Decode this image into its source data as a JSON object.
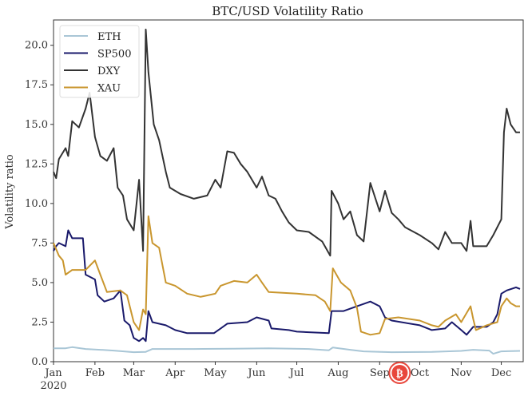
{
  "chart_data": {
    "type": "line",
    "title": "BTC/USD Volatility Ratio",
    "xlabel": "",
    "ylabel": "Volatility ratio",
    "xlim": [
      "2020-01-01",
      "2020-12-15"
    ],
    "ylim": [
      0,
      21.6
    ],
    "grid": false,
    "legend_position": "top-left",
    "y_ticks": [
      "0.0",
      "2.5",
      "5.0",
      "7.5",
      "10.0",
      "12.5",
      "15.0",
      "17.5",
      "20.0"
    ],
    "x_ticks": [
      {
        "date": "2020-01-01",
        "label": "Jan",
        "sub": "2020"
      },
      {
        "date": "2020-02-01",
        "label": "Feb"
      },
      {
        "date": "2020-03-01",
        "label": "Mar"
      },
      {
        "date": "2020-04-01",
        "label": "Apr"
      },
      {
        "date": "2020-05-01",
        "label": "May"
      },
      {
        "date": "2020-06-01",
        "label": "Jun"
      },
      {
        "date": "2020-07-01",
        "label": "Jul"
      },
      {
        "date": "2020-08-01",
        "label": "Aug"
      },
      {
        "date": "2020-09-01",
        "label": "Sep"
      },
      {
        "date": "2020-10-01",
        "label": "Oct"
      },
      {
        "date": "2020-11-01",
        "label": "Nov"
      },
      {
        "date": "2020-12-01",
        "label": "Dec"
      }
    ],
    "series": [
      {
        "name": "ETH",
        "color": "#a9c6d6",
        "points": [
          [
            "2020-01-01",
            0.85
          ],
          [
            "2020-01-10",
            0.85
          ],
          [
            "2020-01-15",
            0.92
          ],
          [
            "2020-01-25",
            0.8
          ],
          [
            "2020-02-05",
            0.75
          ],
          [
            "2020-02-15",
            0.7
          ],
          [
            "2020-03-01",
            0.6
          ],
          [
            "2020-03-10",
            0.62
          ],
          [
            "2020-03-15",
            0.8
          ],
          [
            "2020-04-15",
            0.8
          ],
          [
            "2020-05-15",
            0.82
          ],
          [
            "2020-06-10",
            0.85
          ],
          [
            "2020-07-10",
            0.8
          ],
          [
            "2020-07-25",
            0.72
          ],
          [
            "2020-07-28",
            0.9
          ],
          [
            "2020-08-10",
            0.75
          ],
          [
            "2020-08-20",
            0.65
          ],
          [
            "2020-09-10",
            0.6
          ],
          [
            "2020-10-10",
            0.62
          ],
          [
            "2020-11-01",
            0.68
          ],
          [
            "2020-11-10",
            0.75
          ],
          [
            "2020-11-22",
            0.7
          ],
          [
            "2020-11-25",
            0.5
          ],
          [
            "2020-12-01",
            0.65
          ],
          [
            "2020-12-15",
            0.68
          ]
        ]
      },
      {
        "name": "SP500",
        "color": "#1a1a6b",
        "points": [
          [
            "2020-01-01",
            7.0
          ],
          [
            "2020-01-03",
            7.3
          ],
          [
            "2020-01-05",
            7.5
          ],
          [
            "2020-01-10",
            7.3
          ],
          [
            "2020-01-12",
            8.3
          ],
          [
            "2020-01-15",
            7.8
          ],
          [
            "2020-01-23",
            7.8
          ],
          [
            "2020-01-25",
            5.5
          ],
          [
            "2020-02-01",
            5.2
          ],
          [
            "2020-02-03",
            4.2
          ],
          [
            "2020-02-08",
            3.8
          ],
          [
            "2020-02-15",
            4.0
          ],
          [
            "2020-02-20",
            4.5
          ],
          [
            "2020-02-23",
            2.6
          ],
          [
            "2020-02-27",
            2.3
          ],
          [
            "2020-03-01",
            1.5
          ],
          [
            "2020-03-05",
            1.3
          ],
          [
            "2020-03-08",
            1.5
          ],
          [
            "2020-03-10",
            1.3
          ],
          [
            "2020-03-12",
            3.2
          ],
          [
            "2020-03-15",
            2.5
          ],
          [
            "2020-03-25",
            2.3
          ],
          [
            "2020-04-01",
            2.0
          ],
          [
            "2020-04-10",
            1.8
          ],
          [
            "2020-04-30",
            1.8
          ],
          [
            "2020-05-05",
            2.1
          ],
          [
            "2020-05-10",
            2.4
          ],
          [
            "2020-05-25",
            2.5
          ],
          [
            "2020-06-01",
            2.8
          ],
          [
            "2020-06-10",
            2.6
          ],
          [
            "2020-06-12",
            2.1
          ],
          [
            "2020-06-25",
            2.0
          ],
          [
            "2020-07-01",
            1.9
          ],
          [
            "2020-07-25",
            1.8
          ],
          [
            "2020-07-27",
            3.2
          ],
          [
            "2020-08-05",
            3.2
          ],
          [
            "2020-08-15",
            3.5
          ],
          [
            "2020-08-25",
            3.8
          ],
          [
            "2020-09-01",
            3.5
          ],
          [
            "2020-09-05",
            2.8
          ],
          [
            "2020-09-10",
            2.6
          ],
          [
            "2020-10-01",
            2.3
          ],
          [
            "2020-10-10",
            2.0
          ],
          [
            "2020-10-20",
            2.1
          ],
          [
            "2020-10-25",
            2.5
          ],
          [
            "2020-11-01",
            2.0
          ],
          [
            "2020-11-05",
            1.7
          ],
          [
            "2020-11-10",
            2.2
          ],
          [
            "2020-11-20",
            2.2
          ],
          [
            "2020-11-25",
            2.5
          ],
          [
            "2020-11-28",
            3.0
          ],
          [
            "2020-12-01",
            4.3
          ],
          [
            "2020-12-05",
            4.5
          ],
          [
            "2020-12-12",
            4.7
          ],
          [
            "2020-12-15",
            4.6
          ]
        ]
      },
      {
        "name": "DXY",
        "color": "#333333",
        "points": [
          [
            "2020-01-01",
            12.0
          ],
          [
            "2020-01-03",
            11.6
          ],
          [
            "2020-01-05",
            12.8
          ],
          [
            "2020-01-10",
            13.5
          ],
          [
            "2020-01-12",
            13.0
          ],
          [
            "2020-01-15",
            15.2
          ],
          [
            "2020-01-20",
            14.8
          ],
          [
            "2020-01-25",
            16.0
          ],
          [
            "2020-01-28",
            17.0
          ],
          [
            "2020-02-01",
            14.2
          ],
          [
            "2020-02-05",
            13.0
          ],
          [
            "2020-02-10",
            12.7
          ],
          [
            "2020-02-15",
            13.5
          ],
          [
            "2020-02-18",
            11.0
          ],
          [
            "2020-02-22",
            10.5
          ],
          [
            "2020-02-25",
            9.0
          ],
          [
            "2020-03-01",
            8.3
          ],
          [
            "2020-03-05",
            11.5
          ],
          [
            "2020-03-08",
            7.0
          ],
          [
            "2020-03-10",
            21.0
          ],
          [
            "2020-03-12",
            18.3
          ],
          [
            "2020-03-16",
            15.0
          ],
          [
            "2020-03-20",
            14.0
          ],
          [
            "2020-03-25",
            12.0
          ],
          [
            "2020-03-28",
            11.0
          ],
          [
            "2020-04-05",
            10.6
          ],
          [
            "2020-04-15",
            10.3
          ],
          [
            "2020-04-25",
            10.5
          ],
          [
            "2020-05-01",
            11.5
          ],
          [
            "2020-05-05",
            11.0
          ],
          [
            "2020-05-10",
            13.3
          ],
          [
            "2020-05-15",
            13.2
          ],
          [
            "2020-05-20",
            12.5
          ],
          [
            "2020-05-25",
            12.0
          ],
          [
            "2020-06-01",
            11.0
          ],
          [
            "2020-06-05",
            11.7
          ],
          [
            "2020-06-10",
            10.5
          ],
          [
            "2020-06-15",
            10.3
          ],
          [
            "2020-06-20",
            9.5
          ],
          [
            "2020-06-25",
            8.8
          ],
          [
            "2020-07-01",
            8.3
          ],
          [
            "2020-07-10",
            8.2
          ],
          [
            "2020-07-20",
            7.6
          ],
          [
            "2020-07-26",
            6.7
          ],
          [
            "2020-07-27",
            10.8
          ],
          [
            "2020-08-01",
            10.0
          ],
          [
            "2020-08-05",
            9.0
          ],
          [
            "2020-08-10",
            9.5
          ],
          [
            "2020-08-15",
            8.0
          ],
          [
            "2020-08-20",
            7.6
          ],
          [
            "2020-08-25",
            11.3
          ],
          [
            "2020-09-01",
            9.5
          ],
          [
            "2020-09-05",
            10.8
          ],
          [
            "2020-09-10",
            9.4
          ],
          [
            "2020-09-15",
            9.0
          ],
          [
            "2020-09-20",
            8.5
          ],
          [
            "2020-10-01",
            8.0
          ],
          [
            "2020-10-10",
            7.5
          ],
          [
            "2020-10-15",
            7.1
          ],
          [
            "2020-10-20",
            8.2
          ],
          [
            "2020-10-25",
            7.5
          ],
          [
            "2020-11-01",
            7.5
          ],
          [
            "2020-11-05",
            7.0
          ],
          [
            "2020-11-08",
            8.9
          ],
          [
            "2020-11-10",
            7.3
          ],
          [
            "2020-11-20",
            7.3
          ],
          [
            "2020-11-25",
            8.0
          ],
          [
            "2020-12-01",
            9.0
          ],
          [
            "2020-12-03",
            14.5
          ],
          [
            "2020-12-05",
            16.0
          ],
          [
            "2020-12-08",
            15.0
          ],
          [
            "2020-12-12",
            14.5
          ],
          [
            "2020-12-15",
            14.5
          ]
        ]
      },
      {
        "name": "XAU",
        "color": "#c9962e",
        "points": [
          [
            "2020-01-01",
            7.5
          ],
          [
            "2020-01-05",
            6.7
          ],
          [
            "2020-01-08",
            6.4
          ],
          [
            "2020-01-10",
            5.5
          ],
          [
            "2020-01-15",
            5.8
          ],
          [
            "2020-01-25",
            5.8
          ],
          [
            "2020-02-01",
            6.4
          ],
          [
            "2020-02-05",
            5.5
          ],
          [
            "2020-02-10",
            4.4
          ],
          [
            "2020-02-20",
            4.5
          ],
          [
            "2020-02-25",
            4.2
          ],
          [
            "2020-03-01",
            2.5
          ],
          [
            "2020-03-05",
            2.0
          ],
          [
            "2020-03-08",
            3.3
          ],
          [
            "2020-03-10",
            3.0
          ],
          [
            "2020-03-12",
            9.2
          ],
          [
            "2020-03-15",
            7.5
          ],
          [
            "2020-03-20",
            7.2
          ],
          [
            "2020-03-25",
            5.0
          ],
          [
            "2020-04-01",
            4.8
          ],
          [
            "2020-04-10",
            4.3
          ],
          [
            "2020-04-20",
            4.1
          ],
          [
            "2020-05-01",
            4.3
          ],
          [
            "2020-05-05",
            4.8
          ],
          [
            "2020-05-15",
            5.1
          ],
          [
            "2020-05-25",
            5.0
          ],
          [
            "2020-06-01",
            5.5
          ],
          [
            "2020-06-05",
            5.0
          ],
          [
            "2020-06-10",
            4.4
          ],
          [
            "2020-07-01",
            4.3
          ],
          [
            "2020-07-15",
            4.2
          ],
          [
            "2020-07-22",
            3.8
          ],
          [
            "2020-07-26",
            3.2
          ],
          [
            "2020-07-28",
            5.9
          ],
          [
            "2020-08-03",
            5.0
          ],
          [
            "2020-08-10",
            4.5
          ],
          [
            "2020-08-15",
            3.4
          ],
          [
            "2020-08-18",
            1.9
          ],
          [
            "2020-08-25",
            1.7
          ],
          [
            "2020-09-01",
            1.8
          ],
          [
            "2020-09-05",
            2.7
          ],
          [
            "2020-09-15",
            2.8
          ],
          [
            "2020-10-01",
            2.6
          ],
          [
            "2020-10-10",
            2.3
          ],
          [
            "2020-10-15",
            2.2
          ],
          [
            "2020-10-20",
            2.6
          ],
          [
            "2020-10-28",
            3.0
          ],
          [
            "2020-11-01",
            2.5
          ],
          [
            "2020-11-08",
            3.5
          ],
          [
            "2020-11-10",
            2.7
          ],
          [
            "2020-11-12",
            2.0
          ],
          [
            "2020-11-20",
            2.3
          ],
          [
            "2020-11-28",
            2.5
          ],
          [
            "2020-12-01",
            3.5
          ],
          [
            "2020-12-05",
            4.0
          ],
          [
            "2020-12-08",
            3.7
          ],
          [
            "2020-12-12",
            3.5
          ],
          [
            "2020-12-15",
            3.5
          ]
        ]
      }
    ]
  },
  "watermark": {
    "logo_symbol": "₿",
    "color": "#e8473c"
  }
}
